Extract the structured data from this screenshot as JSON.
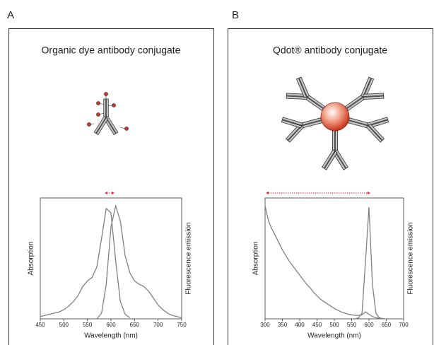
{
  "panels": [
    {
      "label": "A",
      "title": "Organic dye antibody conjugate"
    },
    {
      "label": "B",
      "title": "Qdot® antibody conjugate"
    }
  ],
  "chart_data": [
    {
      "type": "line",
      "x_label": "Wavelength (nm)",
      "y_label": "Absorption",
      "y2_label": "Fluorescence emission",
      "xlim": [
        450,
        750
      ],
      "xticks": [
        450,
        500,
        550,
        600,
        650,
        700,
        750
      ],
      "ylim": [
        0,
        1.05
      ],
      "x": [
        450,
        460,
        470,
        480,
        490,
        500,
        510,
        520,
        530,
        540,
        550,
        560,
        570,
        580,
        590,
        600,
        610,
        620,
        630,
        640,
        650,
        660,
        670,
        680,
        690,
        700,
        710,
        720,
        730,
        740,
        750
      ],
      "series": [
        {
          "color": "#808080",
          "values": [
            0.02,
            0.03,
            0.04,
            0.05,
            0.06,
            0.08,
            0.11,
            0.15,
            0.2,
            0.28,
            0.33,
            0.36,
            0.45,
            0.7,
            0.96,
            0.92,
            0.5,
            0.15,
            0.04,
            0.01,
            null,
            null,
            null,
            null,
            null,
            null,
            null,
            null,
            null,
            null,
            null
          ]
        },
        {
          "color": "#808080",
          "values": [
            null,
            null,
            null,
            null,
            null,
            null,
            null,
            null,
            null,
            null,
            null,
            null,
            0,
            0.05,
            0.3,
            0.8,
            0.98,
            0.85,
            0.55,
            0.4,
            0.33,
            0.3,
            0.28,
            0.24,
            0.18,
            0.12,
            0.08,
            0.05,
            0.03,
            0.02,
            0.01
          ]
        }
      ]
    },
    {
      "type": "line",
      "x_label": "Wavelength (nm)",
      "y_label": "Absorption",
      "y2_label": "Fluorescence emission",
      "xlim": [
        300,
        700
      ],
      "xticks": [
        300,
        350,
        400,
        450,
        500,
        550,
        600,
        650,
        700
      ],
      "ylim": [
        0,
        1.05
      ],
      "x": [
        300,
        310,
        320,
        330,
        340,
        350,
        360,
        370,
        380,
        390,
        400,
        410,
        420,
        430,
        440,
        450,
        460,
        470,
        480,
        490,
        500,
        510,
        520,
        530,
        540,
        550,
        560,
        570,
        580,
        590,
        600,
        610,
        620,
        630,
        640,
        650,
        660,
        670,
        680,
        690,
        700
      ],
      "series": [
        {
          "color": "#808080",
          "values": [
            0.98,
            0.85,
            0.78,
            0.72,
            0.66,
            0.6,
            0.55,
            0.5,
            0.46,
            0.42,
            0.38,
            0.34,
            0.3,
            0.27,
            0.23,
            0.2,
            0.17,
            0.15,
            0.13,
            0.11,
            0.09,
            0.075,
            0.06,
            0.05,
            0.04,
            0.035,
            0.03,
            0.03,
            0.035,
            0.06,
            0.04,
            0.02,
            0.01,
            0.005,
            0.003,
            0,
            0,
            0,
            0,
            0,
            0
          ]
        },
        {
          "color": "#808080",
          "values": [
            null,
            null,
            null,
            null,
            null,
            null,
            null,
            null,
            null,
            null,
            null,
            null,
            null,
            null,
            null,
            null,
            null,
            null,
            null,
            null,
            null,
            null,
            null,
            null,
            null,
            null,
            0,
            0.01,
            0.05,
            0.5,
            0.97,
            0.3,
            0.05,
            0.01,
            0,
            null,
            null,
            null,
            null,
            null,
            null
          ]
        }
      ]
    }
  ]
}
